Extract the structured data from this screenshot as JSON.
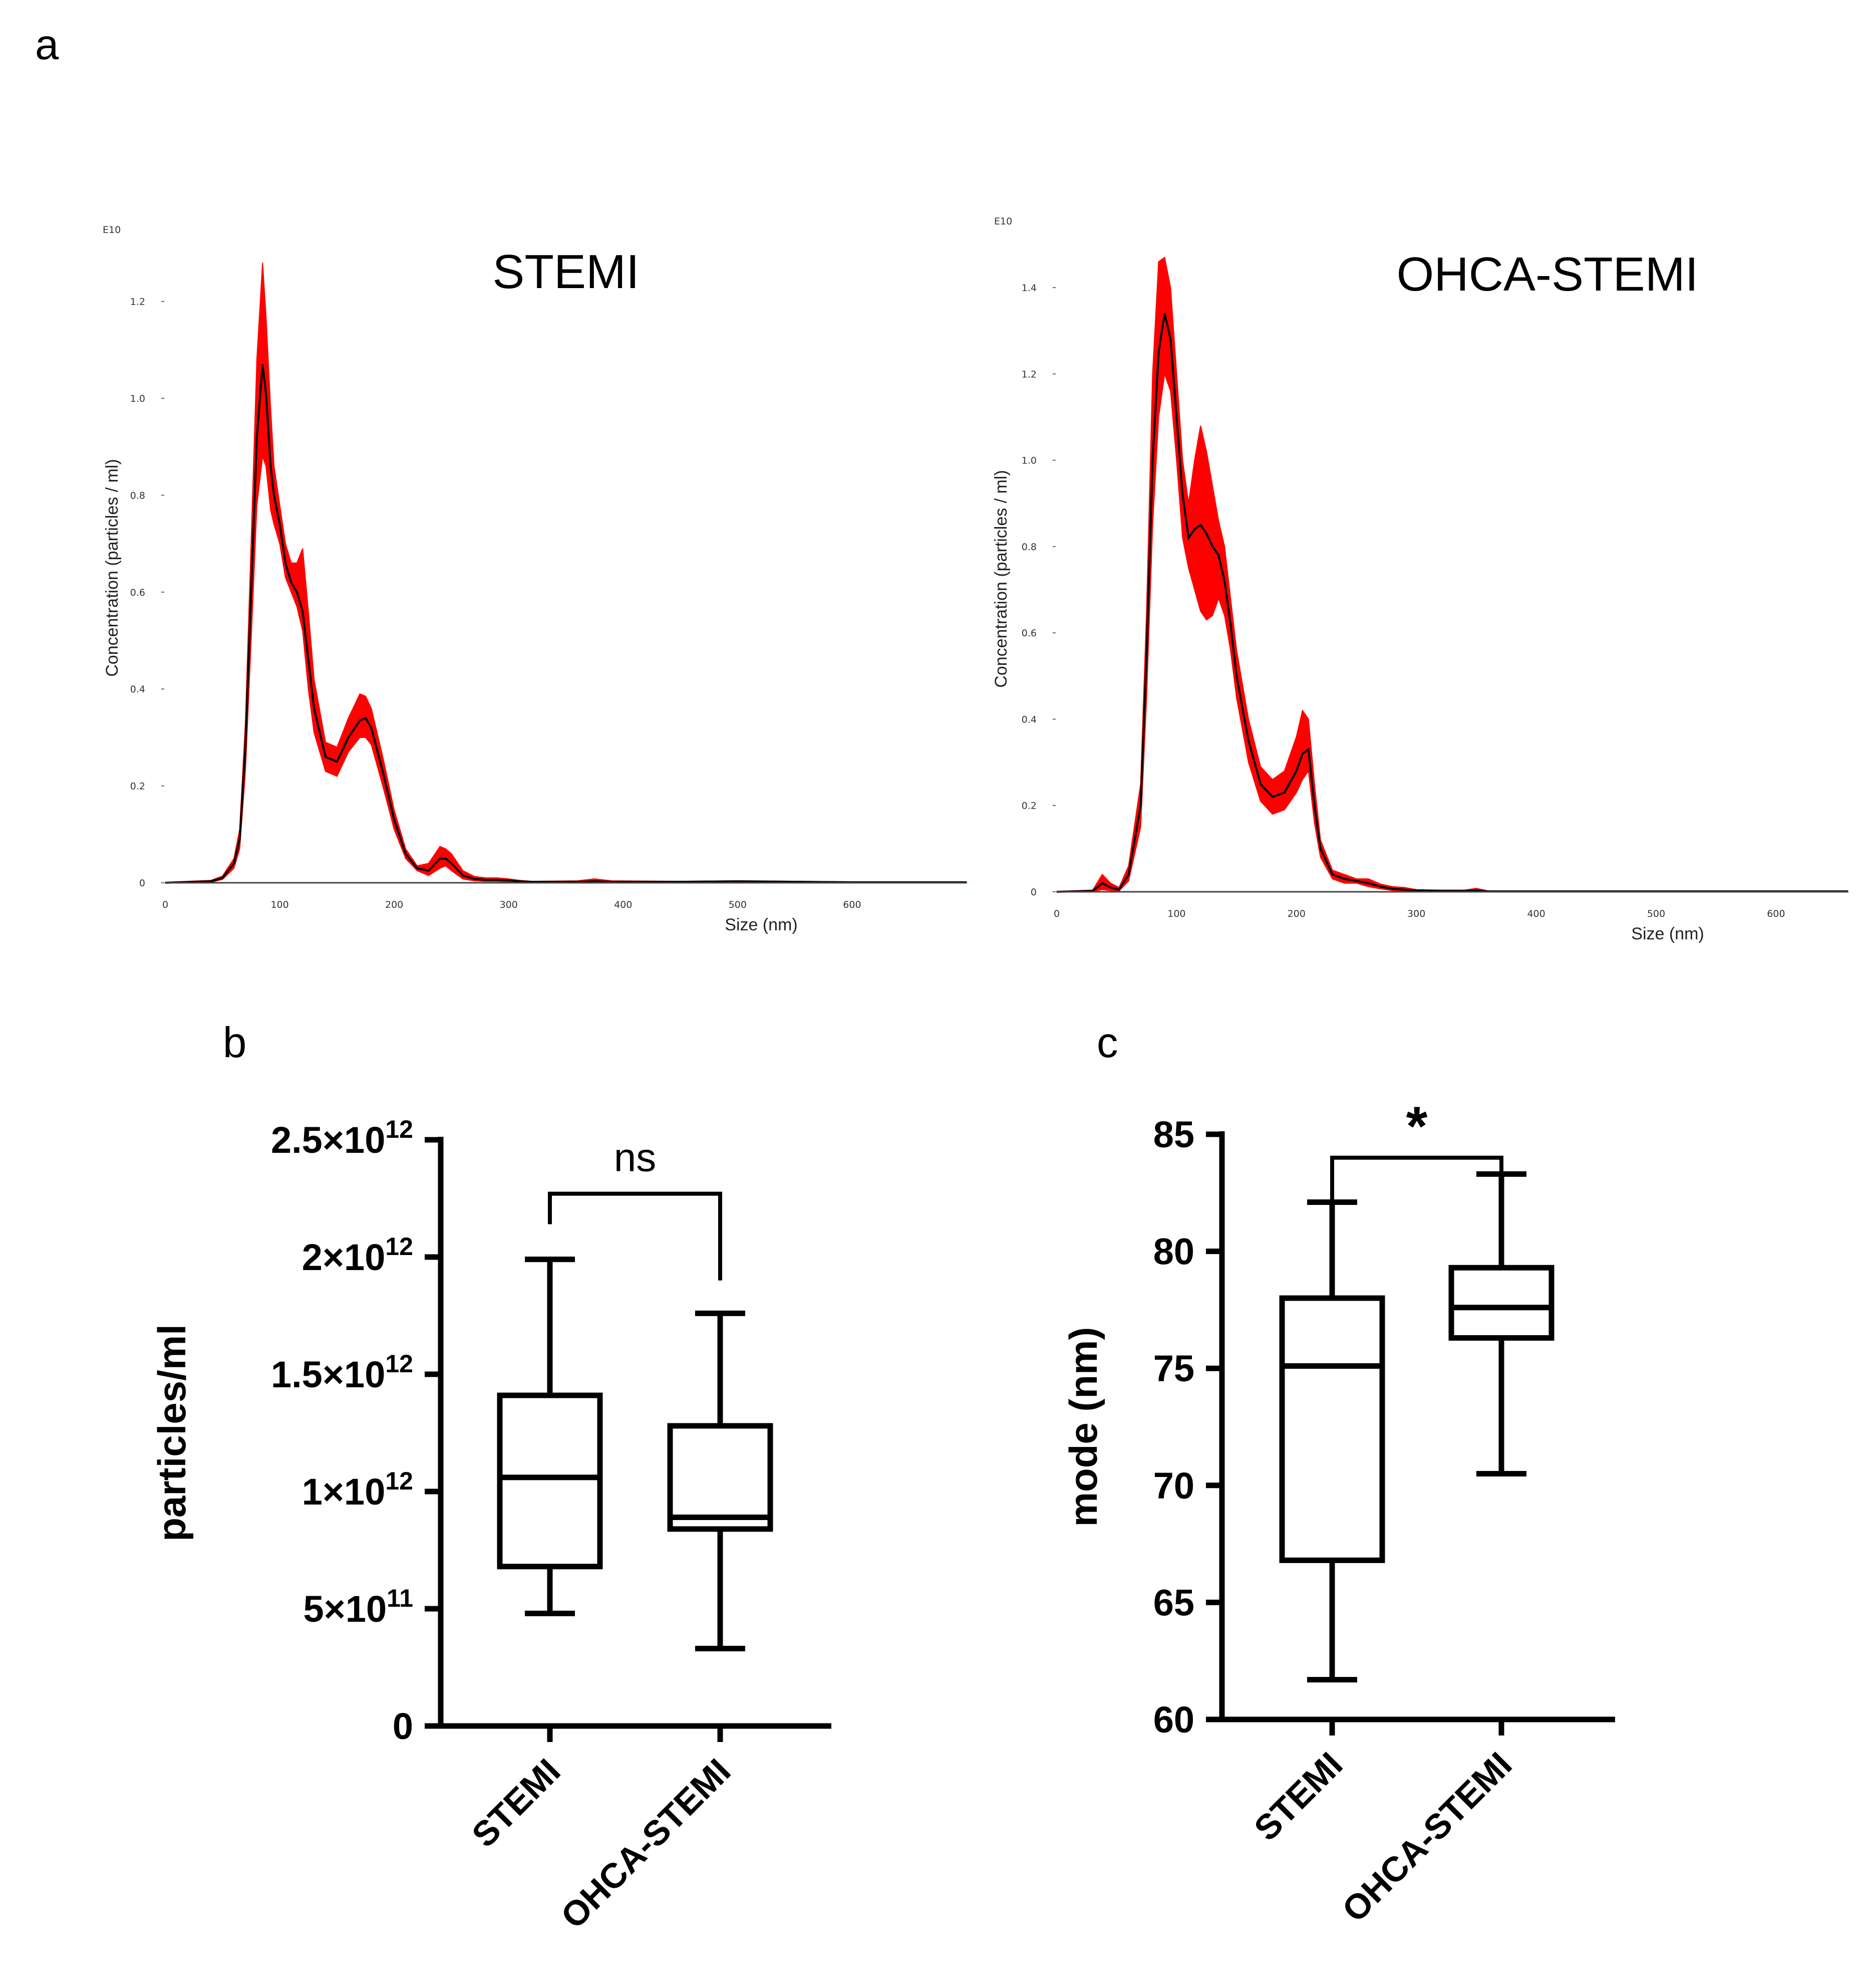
{
  "figure": {
    "panel_letters": {
      "a": "a",
      "b": "b",
      "c": "c"
    }
  },
  "colors": {
    "band": "#ff0000",
    "line": "#000000",
    "axis": "#000000"
  },
  "chart_data": [
    {
      "id": "nta-stemi",
      "type": "area",
      "title": "STEMI",
      "xlabel": "Size (nm)",
      "ylabel": "Concentration (particles / ml)",
      "exponent_label": "E10",
      "xlim": [
        0,
        700
      ],
      "ylim": [
        0,
        1.3
      ],
      "xticks": [
        0,
        100,
        200,
        300,
        400,
        500,
        600
      ],
      "yticks": [
        0,
        0.2,
        0.4,
        0.6,
        0.8,
        1.0,
        1.2
      ],
      "ytick_labels": [
        "0",
        "0.2",
        "0.4",
        "0.6",
        "0.8",
        "1.0",
        "1.2"
      ],
      "series": [
        {
          "name": "mean",
          "x": [
            0,
            40,
            50,
            60,
            65,
            70,
            75,
            80,
            85,
            88,
            92,
            95,
            100,
            105,
            110,
            115,
            120,
            125,
            130,
            140,
            150,
            160,
            170,
            175,
            180,
            190,
            200,
            210,
            220,
            230,
            240,
            245,
            250,
            260,
            270,
            280,
            290,
            300,
            310,
            320,
            360,
            375,
            390,
            450,
            500,
            600,
            700
          ],
          "y": [
            0,
            0.003,
            0.01,
            0.04,
            0.09,
            0.28,
            0.6,
            0.92,
            1.07,
            1.01,
            0.86,
            0.8,
            0.74,
            0.66,
            0.62,
            0.6,
            0.56,
            0.46,
            0.36,
            0.26,
            0.25,
            0.3,
            0.335,
            0.34,
            0.32,
            0.23,
            0.13,
            0.06,
            0.03,
            0.025,
            0.05,
            0.05,
            0.04,
            0.015,
            0.008,
            0.006,
            0.006,
            0.005,
            0.003,
            0.002,
            0.002,
            0.003,
            0.002,
            0.002,
            0.003,
            0.001,
            0.001
          ]
        },
        {
          "name": "upper",
          "y": [
            0.001,
            0.005,
            0.014,
            0.05,
            0.11,
            0.33,
            0.7,
            1.08,
            1.28,
            1.17,
            0.98,
            0.86,
            0.78,
            0.7,
            0.66,
            0.66,
            0.69,
            0.56,
            0.42,
            0.29,
            0.28,
            0.34,
            0.39,
            0.385,
            0.36,
            0.26,
            0.15,
            0.07,
            0.035,
            0.04,
            0.075,
            0.07,
            0.06,
            0.025,
            0.013,
            0.01,
            0.01,
            0.008,
            0.005,
            0.003,
            0.004,
            0.008,
            0.004,
            0.003,
            0.004,
            0.002,
            0.001
          ]
        },
        {
          "name": "lower",
          "y": [
            0,
            0.001,
            0.007,
            0.03,
            0.07,
            0.23,
            0.5,
            0.78,
            0.88,
            0.86,
            0.77,
            0.74,
            0.7,
            0.63,
            0.6,
            0.57,
            0.52,
            0.4,
            0.31,
            0.23,
            0.22,
            0.27,
            0.3,
            0.3,
            0.285,
            0.2,
            0.11,
            0.05,
            0.025,
            0.015,
            0.03,
            0.035,
            0.025,
            0.008,
            0.004,
            0.003,
            0.003,
            0.002,
            0.001,
            0.001,
            0.001,
            0.001,
            0.001,
            0.001,
            0.002,
            0,
            0
          ]
        }
      ]
    },
    {
      "id": "nta-ohca",
      "type": "area",
      "title": "OHCA-STEMI",
      "xlabel": "Size (nm)",
      "ylabel": "Concentration (particles / ml)",
      "exponent_label": "E10",
      "xlim": [
        0,
        660
      ],
      "ylim": [
        0,
        1.45
      ],
      "xticks": [
        0,
        100,
        200,
        300,
        400,
        500,
        600
      ],
      "yticks": [
        0,
        0.2,
        0.4,
        0.6,
        0.8,
        1.0,
        1.2,
        1.4
      ],
      "ytick_labels": [
        "0",
        "0.2",
        "0.4",
        "0.6",
        "0.8",
        "1.0",
        "1.2",
        "1.4"
      ],
      "series": [
        {
          "name": "mean",
          "x": [
            0,
            30,
            38,
            45,
            52,
            60,
            70,
            75,
            80,
            85,
            90,
            95,
            100,
            105,
            110,
            115,
            120,
            125,
            130,
            135,
            140,
            145,
            150,
            160,
            170,
            180,
            190,
            200,
            205,
            210,
            215,
            220,
            230,
            240,
            250,
            260,
            270,
            280,
            290,
            300,
            320,
            340,
            350,
            360,
            400,
            500,
            600,
            660
          ],
          "y": [
            0,
            0.002,
            0.02,
            0.01,
            0.005,
            0.04,
            0.2,
            0.55,
            1.0,
            1.25,
            1.34,
            1.28,
            1.1,
            0.92,
            0.82,
            0.84,
            0.85,
            0.83,
            0.8,
            0.78,
            0.72,
            0.62,
            0.5,
            0.35,
            0.25,
            0.22,
            0.23,
            0.28,
            0.32,
            0.33,
            0.2,
            0.1,
            0.04,
            0.03,
            0.025,
            0.02,
            0.012,
            0.007,
            0.005,
            0.003,
            0.002,
            0.002,
            0.003,
            0.001,
            0.001,
            0.001,
            0.001,
            0.001
          ]
        },
        {
          "name": "upper",
          "y": [
            0.001,
            0.004,
            0.04,
            0.02,
            0.01,
            0.06,
            0.25,
            0.65,
            1.2,
            1.46,
            1.47,
            1.4,
            1.2,
            1.0,
            0.9,
            1.0,
            1.08,
            1.02,
            0.94,
            0.86,
            0.8,
            0.68,
            0.56,
            0.4,
            0.29,
            0.26,
            0.28,
            0.36,
            0.42,
            0.4,
            0.25,
            0.12,
            0.05,
            0.04,
            0.03,
            0.03,
            0.018,
            0.012,
            0.01,
            0.005,
            0.004,
            0.004,
            0.008,
            0.002,
            0.001,
            0.001,
            0.001,
            0.001
          ]
        },
        {
          "name": "lower",
          "y": [
            0,
            0.001,
            0.005,
            0.003,
            0.002,
            0.025,
            0.15,
            0.45,
            0.85,
            1.1,
            1.2,
            1.16,
            1.0,
            0.82,
            0.75,
            0.7,
            0.65,
            0.63,
            0.64,
            0.68,
            0.64,
            0.56,
            0.45,
            0.3,
            0.21,
            0.18,
            0.19,
            0.23,
            0.26,
            0.28,
            0.16,
            0.08,
            0.03,
            0.02,
            0.02,
            0.012,
            0.007,
            0.003,
            0.002,
            0.001,
            0.001,
            0.001,
            0.001,
            0,
            0,
            0,
            0,
            0
          ]
        }
      ]
    },
    {
      "id": "box-particles",
      "type": "box",
      "ylabel": "particles/ml",
      "ylim": [
        0,
        2500000000000.0
      ],
      "yticks": [
        0,
        500000000000.0,
        1000000000000.0,
        1500000000000.0,
        2000000000000.0,
        2500000000000.0
      ],
      "ytick_labels": [
        {
          "base": "0",
          "exp": ""
        },
        {
          "base": "5×10",
          "exp": "11"
        },
        {
          "base": "1×10",
          "exp": "12"
        },
        {
          "base": "1.5×10",
          "exp": "12"
        },
        {
          "base": "2×10",
          "exp": "12"
        },
        {
          "base": "2.5×10",
          "exp": "12"
        }
      ],
      "categories": [
        "STEMI",
        "OHCA-STEMI"
      ],
      "boxes": [
        {
          "name": "STEMI",
          "min": 480000000000.0,
          "q1": 680000000000.0,
          "median": 1060000000000.0,
          "q3": 1410000000000.0,
          "max": 1990000000000.0
        },
        {
          "name": "OHCA-STEMI",
          "min": 330000000000.0,
          "q1": 840000000000.0,
          "median": 890000000000.0,
          "q3": 1280000000000.0,
          "max": 1760000000000.0
        }
      ],
      "significance": {
        "label": "ns",
        "bar_level": 2270000000000.0,
        "left_drop_to": 2140000000000.0,
        "right_drop_to": 1900000000000.0
      }
    },
    {
      "id": "box-mode",
      "type": "box",
      "ylabel": "mode (nm)",
      "ylim": [
        60,
        85
      ],
      "yticks": [
        60,
        65,
        70,
        75,
        80,
        85
      ],
      "ytick_labels": [
        {
          "base": "60",
          "exp": ""
        },
        {
          "base": "65",
          "exp": ""
        },
        {
          "base": "70",
          "exp": ""
        },
        {
          "base": "75",
          "exp": ""
        },
        {
          "base": "80",
          "exp": ""
        },
        {
          "base": "85",
          "exp": ""
        }
      ],
      "categories": [
        "STEMI",
        "OHCA-STEMI"
      ],
      "boxes": [
        {
          "name": "STEMI",
          "min": 61.7,
          "q1": 66.8,
          "median": 75.1,
          "q3": 78.0,
          "max": 82.1
        },
        {
          "name": "OHCA-STEMI",
          "min": 70.5,
          "q1": 76.3,
          "median": 77.6,
          "q3": 79.3,
          "max": 83.3
        }
      ],
      "significance": {
        "label": "*",
        "bar_level": 84.0,
        "left_drop_to": 81.1,
        "right_drop_to": 82.4
      }
    }
  ]
}
